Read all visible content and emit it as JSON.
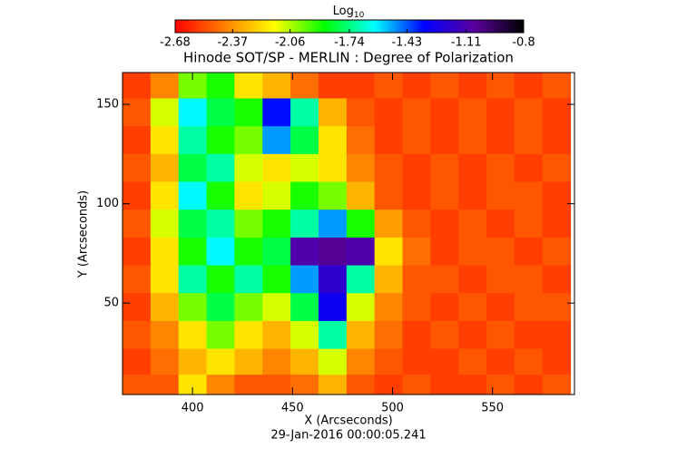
{
  "chart_data": {
    "type": "heatmap",
    "title": "Hinode SOT/SP - MERLIN : Degree of Polarization",
    "xlabel": "X (Arcseconds)",
    "ylabel": "Y (Arcseconds)",
    "footer": "29-Jan-2016 00:00:05.241",
    "colorbar_label": {
      "text": "Log",
      "subscript": "10"
    },
    "xlim": [
      365,
      591
    ],
    "ylim": [
      4,
      166
    ],
    "xticks": [
      400,
      450,
      500,
      550
    ],
    "yticks": [
      50,
      100,
      150
    ],
    "clim": [
      -2.68,
      -0.8
    ],
    "cticks": [
      -2.68,
      -2.37,
      -2.06,
      -1.74,
      -1.43,
      -1.11,
      -0.8
    ],
    "colormap": [
      "#ff0000",
      "#ff8000",
      "#ffff00",
      "#00ff00",
      "#00ffff",
      "#0000ff",
      "#5a00a0",
      "#000000"
    ],
    "x": [
      372,
      386,
      400,
      414,
      428,
      442,
      456,
      470,
      484,
      498,
      512,
      526,
      540,
      554,
      568,
      582
    ],
    "y": [
      160,
      146,
      132,
      118,
      104,
      90,
      76,
      62,
      48,
      34,
      20,
      8
    ],
    "z": [
      [
        -2.55,
        -2.4,
        -2.0,
        -1.9,
        -2.2,
        -2.3,
        -2.45,
        -2.55,
        -2.55,
        -2.5,
        -2.55,
        -2.5,
        -2.55,
        -2.5,
        -2.55,
        -2.5
      ],
      [
        -2.5,
        -2.1,
        -1.6,
        -1.8,
        -1.9,
        -1.35,
        -1.7,
        -2.3,
        -2.5,
        -2.55,
        -2.5,
        -2.55,
        -2.5,
        -2.55,
        -2.5,
        -2.55
      ],
      [
        -2.55,
        -2.2,
        -1.7,
        -1.9,
        -2.0,
        -1.5,
        -1.8,
        -2.2,
        -2.45,
        -2.55,
        -2.5,
        -2.55,
        -2.5,
        -2.55,
        -2.5,
        -2.55
      ],
      [
        -2.5,
        -2.3,
        -1.8,
        -1.7,
        -2.1,
        -2.2,
        -2.1,
        -2.2,
        -2.4,
        -2.5,
        -2.55,
        -2.5,
        -2.55,
        -2.5,
        -2.55,
        -2.5
      ],
      [
        -2.55,
        -2.2,
        -1.6,
        -1.9,
        -2.2,
        -2.1,
        -1.9,
        -2.0,
        -2.3,
        -2.5,
        -2.55,
        -2.5,
        -2.55,
        -2.5,
        -2.5,
        -2.55
      ],
      [
        -2.5,
        -2.1,
        -1.8,
        -1.7,
        -2.0,
        -1.9,
        -1.7,
        -1.5,
        -1.9,
        -2.35,
        -2.5,
        -2.55,
        -2.5,
        -2.55,
        -2.5,
        -2.55
      ],
      [
        -2.55,
        -2.2,
        -1.9,
        -1.6,
        -1.9,
        -1.8,
        -1.1,
        -1.05,
        -1.1,
        -2.2,
        -2.45,
        -2.55,
        -2.5,
        -2.5,
        -2.55,
        -2.5
      ],
      [
        -2.5,
        -2.2,
        -1.7,
        -1.9,
        -1.7,
        -1.9,
        -1.5,
        -1.2,
        -1.7,
        -2.3,
        -2.5,
        -2.5,
        -2.55,
        -2.5,
        -2.5,
        -2.55
      ],
      [
        -2.55,
        -2.3,
        -2.0,
        -1.8,
        -2.0,
        -2.1,
        -1.8,
        -1.3,
        -2.1,
        -2.4,
        -2.5,
        -2.55,
        -2.5,
        -2.55,
        -2.5,
        -2.5
      ],
      [
        -2.5,
        -2.4,
        -2.2,
        -2.0,
        -2.2,
        -2.3,
        -2.1,
        -1.7,
        -2.3,
        -2.45,
        -2.55,
        -2.5,
        -2.55,
        -2.5,
        -2.55,
        -2.55
      ],
      [
        -2.55,
        -2.45,
        -2.3,
        -2.2,
        -2.3,
        -2.4,
        -2.3,
        -2.1,
        -2.4,
        -2.5,
        -2.55,
        -2.55,
        -2.5,
        -2.55,
        -2.5,
        -2.55
      ],
      [
        -2.5,
        -2.5,
        -2.2,
        -2.4,
        -2.5,
        -2.5,
        -2.45,
        -2.3,
        -2.5,
        -2.55,
        -2.5,
        -2.55,
        -2.55,
        -2.5,
        -2.55,
        -2.5
      ]
    ]
  }
}
